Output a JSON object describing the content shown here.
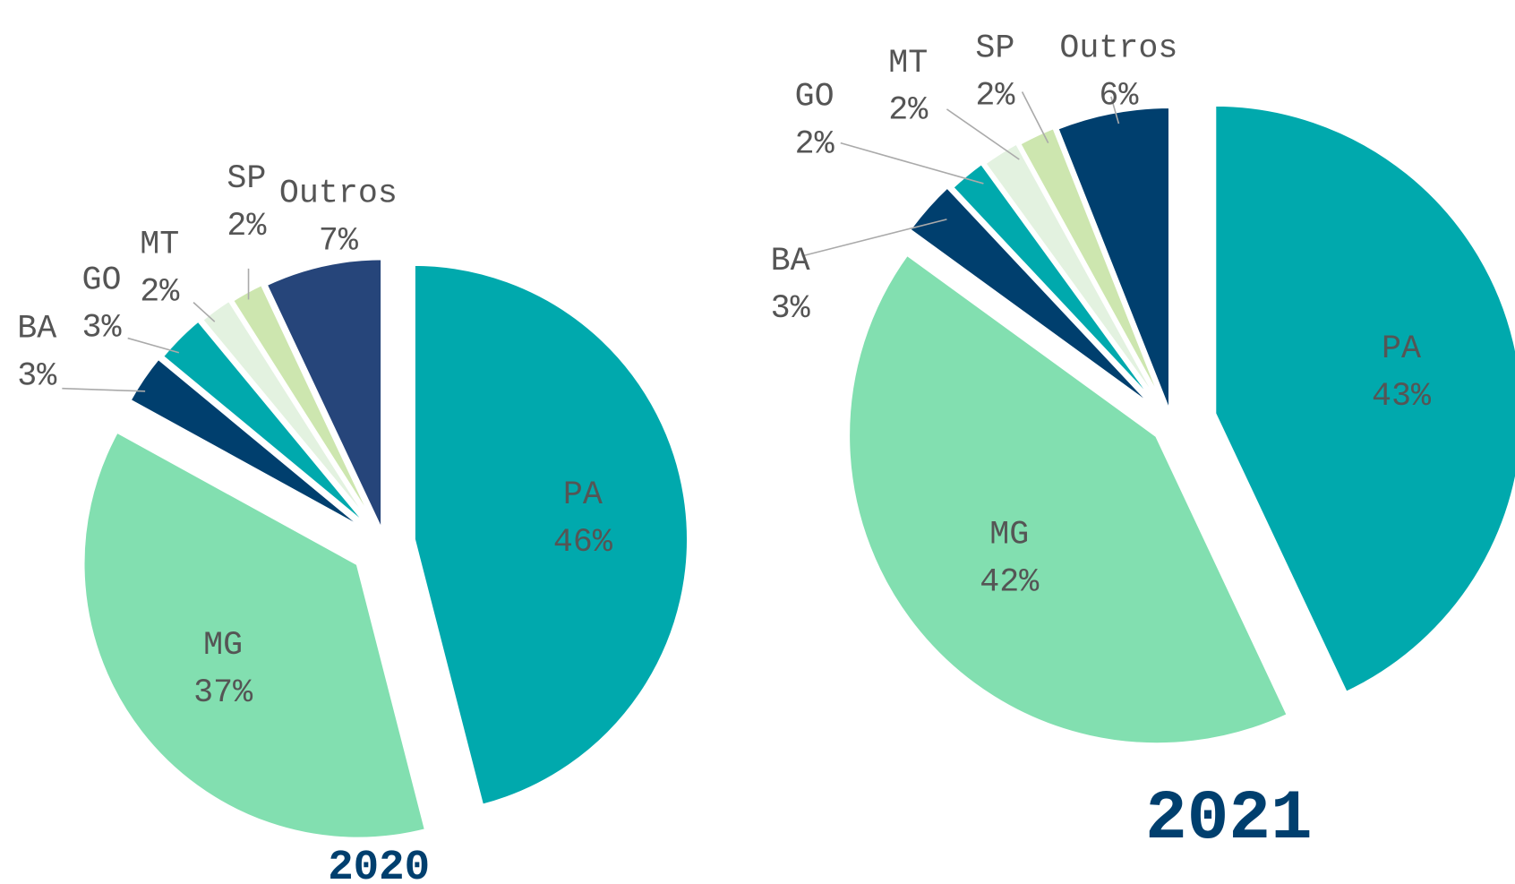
{
  "chart_data": [
    {
      "type": "pie",
      "title": "2020",
      "categories": [
        "PA",
        "MG",
        "BA",
        "GO",
        "MT",
        "SP",
        "Outros"
      ],
      "values": [
        46,
        37,
        3,
        3,
        2,
        2,
        7
      ],
      "value_labels": [
        "46%",
        "37%",
        "3%",
        "3%",
        "2%",
        "2%",
        "7%"
      ],
      "colors": [
        "#00A9AD",
        "#82DFB0",
        "#003F6E",
        "#00A9AD",
        "#E3F2E0",
        "#CDE6AF",
        "#26457A"
      ]
    },
    {
      "type": "pie",
      "title": "2021",
      "categories": [
        "PA",
        "MG",
        "BA",
        "GO",
        "MT",
        "SP",
        "Outros"
      ],
      "values": [
        43,
        42,
        3,
        2,
        2,
        2,
        6
      ],
      "value_labels": [
        "43%",
        "42%",
        "3%",
        "2%",
        "2%",
        "2%",
        "6%"
      ],
      "colors": [
        "#00A9AD",
        "#82DFB0",
        "#003F6E",
        "#00A9AD",
        "#E3F2E0",
        "#CDE6AF",
        "#003F6E"
      ]
    }
  ]
}
